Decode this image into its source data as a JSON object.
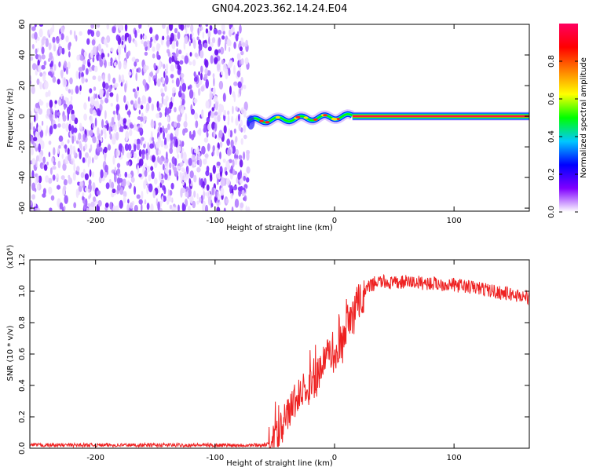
{
  "title": "GN04.2023.362.14.24.E04",
  "chart_data": [
    {
      "type": "heatmap",
      "xlabel": "Height of straight line (km)",
      "ylabel": "Frequency (Hz)",
      "xlim": [
        -255,
        163
      ],
      "ylim": [
        -62,
        60
      ],
      "x_ticks": [
        -200,
        -100,
        0,
        100
      ],
      "y_ticks": [
        -60,
        -40,
        -20,
        0,
        20,
        40,
        60
      ],
      "noise_region_x": [
        -255,
        -72
      ],
      "signal_line": {
        "frequency_hz": 0,
        "x_range": [
          -72,
          163
        ],
        "normalized_amplitude": 1.0,
        "wavy_segment_x": [
          -72,
          15
        ]
      },
      "colorbar": {
        "label": "Normalized spectral amplitude",
        "range": [
          0,
          1
        ],
        "ticks": [
          "0.0",
          "0.2",
          "0.4",
          "0.6",
          "0.8"
        ],
        "colors": [
          "#ffffff",
          "#8000ff",
          "#0000ff",
          "#00c8ff",
          "#00ff00",
          "#ffff00",
          "#ff8000",
          "#ff0000",
          "#ff0060"
        ]
      },
      "grid": false
    },
    {
      "type": "line",
      "xlabel": "Height of straight line (km)",
      "ylabel": "SNR (10 * v/v)",
      "scale_label": "(x10⁴)",
      "xlim": [
        -255,
        163
      ],
      "ylim": [
        0,
        1.2
      ],
      "x_ticks": [
        -200,
        -100,
        0,
        100
      ],
      "y_ticks": [
        "0.0",
        "0.2",
        "0.4",
        "0.6",
        "0.8",
        "1.0",
        "1.2"
      ],
      "series": [
        {
          "color": "#ee2222",
          "x": [
            -255,
            -200,
            -150,
            -100,
            -60,
            -52,
            -47,
            -42,
            -38,
            -32,
            -25,
            -20,
            -15,
            -12,
            -8,
            -5,
            -2,
            0,
            5,
            10,
            15,
            20,
            25,
            30,
            35,
            40,
            50,
            60,
            80,
            100,
            120,
            140,
            163
          ],
          "y": [
            0.02,
            0.02,
            0.02,
            0.02,
            0.02,
            0.03,
            0.1,
            0.2,
            0.25,
            0.3,
            0.37,
            0.4,
            0.45,
            0.5,
            0.55,
            0.6,
            0.6,
            0.55,
            0.65,
            0.75,
            0.85,
            0.92,
            1.0,
            1.03,
            1.06,
            1.06,
            1.05,
            1.06,
            1.05,
            1.04,
            1.02,
            0.99,
            0.96
          ]
        }
      ],
      "grid": false
    }
  ]
}
